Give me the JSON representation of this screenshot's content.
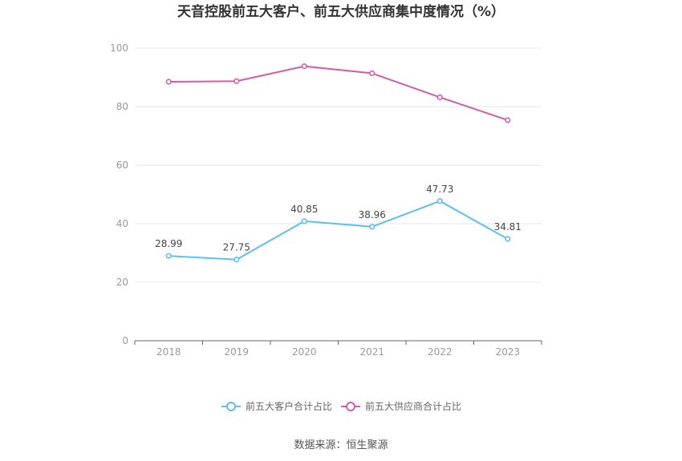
{
  "title": "天音控股前五大客户、前五大供应商集中度情况（%）",
  "source": "数据来源：恒生聚源",
  "colors": {
    "customer": "#5bc0eb",
    "supplier": "#d45ca8",
    "grid": "#e6e6f0",
    "axis": "#666666"
  },
  "chart_data": {
    "type": "line",
    "x": [
      "2018",
      "2019",
      "2020",
      "2021",
      "2022",
      "2023"
    ],
    "ylim": [
      0,
      100
    ],
    "yticks": [
      0,
      20,
      40,
      60,
      80,
      100
    ],
    "grid": true,
    "legend_position": "bottom-center",
    "series": [
      {
        "name": "前五大客户合计占比",
        "values": [
          28.99,
          27.75,
          40.85,
          38.96,
          47.73,
          34.81
        ],
        "labels": [
          "28.99",
          "27.75",
          "40.85",
          "38.96",
          "47.73",
          "34.81"
        ],
        "color": "#5bc0eb"
      },
      {
        "name": "前五大供应商合计占比",
        "values": [
          88.5,
          88.7,
          93.8,
          91.4,
          83.2,
          75.4
        ],
        "color": "#d45ca8"
      }
    ]
  }
}
